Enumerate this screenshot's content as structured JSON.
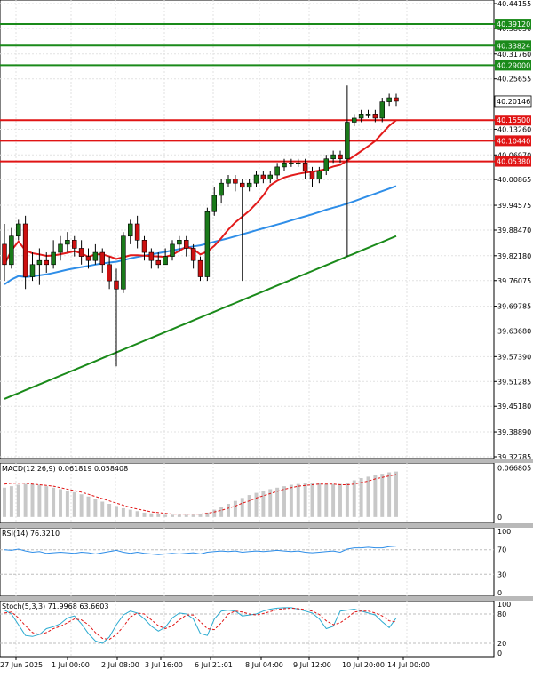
{
  "chart_data": {
    "type": "candlestick",
    "colors": {
      "bull": "#1a7a1a",
      "bear": "#cc1010",
      "ma_fast": "#e21b1b",
      "ma_mid": "#2f8ee8",
      "ma_slow": "#1a8a1a",
      "res_line": "#1a8a1a",
      "sup_line": "#e01414",
      "macd_hist": "#c8c8c8",
      "macd_signal": "#e01414",
      "rsi": "#2f8ee8",
      "stoch_k": "#2aaad0",
      "stoch_d": "#e01414",
      "grid": "#e2e2e2",
      "price_tag_bg": "#ffffff"
    },
    "price_axis": {
      "ticks": [
        "40.44155",
        "40.38050",
        "40.31760",
        "40.25655",
        "40.13260",
        "40.06970",
        "40.00865",
        "39.94575",
        "39.88470",
        "39.82180",
        "39.76075",
        "39.69785",
        "39.63680",
        "39.57390",
        "39.51285",
        "39.45180",
        "39.38890",
        "39.32785"
      ],
      "ylim": [
        39.32785,
        40.44155
      ]
    },
    "current_price": "40.20146",
    "resistance_levels": [
      {
        "label": "40.39120",
        "value": 40.3912
      },
      {
        "label": "40.33824",
        "value": 40.33824
      },
      {
        "label": "40.29000",
        "value": 40.29
      }
    ],
    "support_levels": [
      {
        "label": "40.15500",
        "value": 40.155
      },
      {
        "label": "40.10440",
        "value": 40.1044
      },
      {
        "label": "40.05380",
        "value": 40.0538
      }
    ],
    "x_labels": [
      "27 Jun 2025",
      "1 Jul 00:00",
      "2 Jul 08:00",
      "3 Jul 16:00",
      "6 Jul 21:01",
      "8 Jul 04:00",
      "9 Jul 12:00",
      "10 Jul 20:00",
      "14 Jul 00:00"
    ],
    "candles": [
      [
        39.85,
        39.8,
        39.9,
        39.76
      ],
      [
        39.8,
        39.87,
        39.89,
        39.79
      ],
      [
        39.87,
        39.9,
        39.91,
        39.86
      ],
      [
        39.9,
        39.77,
        39.92,
        39.74
      ],
      [
        39.77,
        39.8,
        39.83,
        39.76
      ],
      [
        39.8,
        39.81,
        39.84,
        39.75
      ],
      [
        39.81,
        39.8,
        39.83,
        39.78
      ],
      [
        39.8,
        39.83,
        39.86,
        39.79
      ],
      [
        39.83,
        39.85,
        39.87,
        39.81
      ],
      [
        39.85,
        39.86,
        39.88,
        39.83
      ],
      [
        39.86,
        39.84,
        39.87,
        39.82
      ],
      [
        39.84,
        39.82,
        39.86,
        39.8
      ],
      [
        39.82,
        39.81,
        39.84,
        39.79
      ],
      [
        39.81,
        39.83,
        39.85,
        39.8
      ],
      [
        39.83,
        39.8,
        39.84,
        39.78
      ],
      [
        39.8,
        39.76,
        39.82,
        39.74
      ],
      [
        39.76,
        39.74,
        39.79,
        39.55
      ],
      [
        39.74,
        39.87,
        39.88,
        39.73
      ],
      [
        39.87,
        39.9,
        39.91,
        39.85
      ],
      [
        39.9,
        39.86,
        39.92,
        39.84
      ],
      [
        39.86,
        39.83,
        39.87,
        39.81
      ],
      [
        39.83,
        39.81,
        39.84,
        39.79
      ],
      [
        39.81,
        39.8,
        39.83,
        39.79
      ],
      [
        39.8,
        39.82,
        39.84,
        39.8
      ],
      [
        39.82,
        39.85,
        39.86,
        39.81
      ],
      [
        39.85,
        39.86,
        39.87,
        39.83
      ],
      [
        39.86,
        39.84,
        39.87,
        39.82
      ],
      [
        39.84,
        39.81,
        39.85,
        39.79
      ],
      [
        39.81,
        39.77,
        39.82,
        39.76
      ],
      [
        39.77,
        39.93,
        39.94,
        39.76
      ],
      [
        39.93,
        39.97,
        39.99,
        39.92
      ],
      [
        39.97,
        40.0,
        40.01,
        39.95
      ],
      [
        40.0,
        40.01,
        40.02,
        39.99
      ],
      [
        40.01,
        40.0,
        40.02,
        39.98
      ],
      [
        40.0,
        39.99,
        40.01,
        39.76
      ],
      [
        39.99,
        40.0,
        40.01,
        39.98
      ],
      [
        40.0,
        40.02,
        40.03,
        39.99
      ],
      [
        40.02,
        40.01,
        40.03,
        40.0
      ],
      [
        40.01,
        40.02,
        40.03,
        40.0
      ],
      [
        40.02,
        40.04,
        40.05,
        40.01
      ],
      [
        40.04,
        40.05,
        40.06,
        40.03
      ],
      [
        40.05,
        40.05,
        40.06,
        40.04
      ],
      [
        40.05,
        40.05,
        40.06,
        40.04
      ],
      [
        40.05,
        40.03,
        40.06,
        40.01
      ],
      [
        40.03,
        40.01,
        40.04,
        39.99
      ],
      [
        40.01,
        40.03,
        40.04,
        40.0
      ],
      [
        40.03,
        40.06,
        40.07,
        40.02
      ],
      [
        40.06,
        40.07,
        40.08,
        40.05
      ],
      [
        40.07,
        40.06,
        40.08,
        40.05
      ],
      [
        40.06,
        40.15,
        40.24,
        39.82
      ],
      [
        40.15,
        40.16,
        40.17,
        40.14
      ],
      [
        40.16,
        40.17,
        40.18,
        40.15
      ],
      [
        40.17,
        40.17,
        40.18,
        40.16
      ],
      [
        40.17,
        40.16,
        40.18,
        40.15
      ],
      [
        40.16,
        40.2,
        40.21,
        40.15
      ],
      [
        40.2,
        40.21,
        40.22,
        40.19
      ],
      [
        40.21,
        40.2015,
        40.22,
        40.19
      ]
    ],
    "macd": {
      "label": "MACD(12,26,9) 0.061819 0.058408",
      "ticks": [
        "0.066805",
        "0"
      ],
      "ylim": [
        -0.005,
        0.07
      ],
      "hist": [
        0.04,
        0.042,
        0.044,
        0.045,
        0.045,
        0.044,
        0.042,
        0.04,
        0.038,
        0.036,
        0.034,
        0.031,
        0.028,
        0.025,
        0.021,
        0.018,
        0.015,
        0.012,
        0.01,
        0.008,
        0.006,
        0.005,
        0.004,
        0.003,
        0.003,
        0.003,
        0.003,
        0.003,
        0.004,
        0.006,
        0.01,
        0.014,
        0.018,
        0.022,
        0.026,
        0.03,
        0.033,
        0.036,
        0.038,
        0.04,
        0.042,
        0.044,
        0.045,
        0.046,
        0.046,
        0.046,
        0.045,
        0.045,
        0.045,
        0.046,
        0.05,
        0.053,
        0.055,
        0.057,
        0.059,
        0.061,
        0.062
      ],
      "signal": [
        0.045,
        0.046,
        0.046,
        0.046,
        0.045,
        0.044,
        0.043,
        0.042,
        0.04,
        0.038,
        0.036,
        0.034,
        0.031,
        0.028,
        0.025,
        0.022,
        0.019,
        0.016,
        0.013,
        0.011,
        0.009,
        0.007,
        0.006,
        0.005,
        0.004,
        0.004,
        0.004,
        0.004,
        0.004,
        0.005,
        0.007,
        0.009,
        0.012,
        0.015,
        0.019,
        0.022,
        0.026,
        0.029,
        0.032,
        0.035,
        0.038,
        0.04,
        0.042,
        0.043,
        0.044,
        0.045,
        0.045,
        0.045,
        0.044,
        0.044,
        0.045,
        0.047,
        0.049,
        0.052,
        0.054,
        0.056,
        0.058
      ]
    },
    "rsi": {
      "label": "RSI(14) 76.3210",
      "ticks": [
        "100",
        "70",
        "30",
        "0"
      ],
      "ylim": [
        0,
        100
      ],
      "values": [
        70,
        69,
        71,
        68,
        66,
        67,
        64,
        65,
        66,
        65,
        64,
        66,
        65,
        63,
        65,
        67,
        69,
        66,
        64,
        66,
        64,
        63,
        62,
        63,
        64,
        63,
        64,
        65,
        63,
        66,
        67,
        68,
        67,
        68,
        66,
        67,
        68,
        67,
        68,
        69,
        68,
        67,
        68,
        66,
        65,
        66,
        67,
        68,
        66,
        71,
        73,
        73,
        74,
        73,
        73,
        75,
        76
      ]
    },
    "stoch": {
      "label": "Stoch(5,3,3) 71.9968 63.6603",
      "ticks": [
        "100",
        "80",
        "20",
        "0"
      ],
      "ylim": [
        0,
        100
      ],
      "k": [
        88,
        80,
        58,
        36,
        34,
        38,
        50,
        54,
        60,
        72,
        76,
        60,
        40,
        25,
        20,
        33,
        58,
        78,
        86,
        82,
        70,
        55,
        45,
        53,
        72,
        82,
        80,
        70,
        40,
        36,
        70,
        86,
        88,
        86,
        76,
        78,
        80,
        86,
        90,
        92,
        93,
        93,
        90,
        86,
        82,
        70,
        50,
        55,
        86,
        88,
        90,
        86,
        82,
        78,
        64,
        52,
        72
      ],
      "d": [
        82,
        84,
        72,
        56,
        42,
        38,
        42,
        50,
        55,
        62,
        70,
        68,
        58,
        42,
        30,
        28,
        38,
        54,
        74,
        82,
        80,
        68,
        56,
        50,
        56,
        68,
        78,
        78,
        64,
        50,
        48,
        62,
        80,
        86,
        84,
        80,
        78,
        81,
        85,
        89,
        91,
        92,
        91,
        89,
        86,
        79,
        66,
        58,
        62,
        72,
        84,
        86,
        86,
        82,
        76,
        66,
        64
      ]
    }
  }
}
